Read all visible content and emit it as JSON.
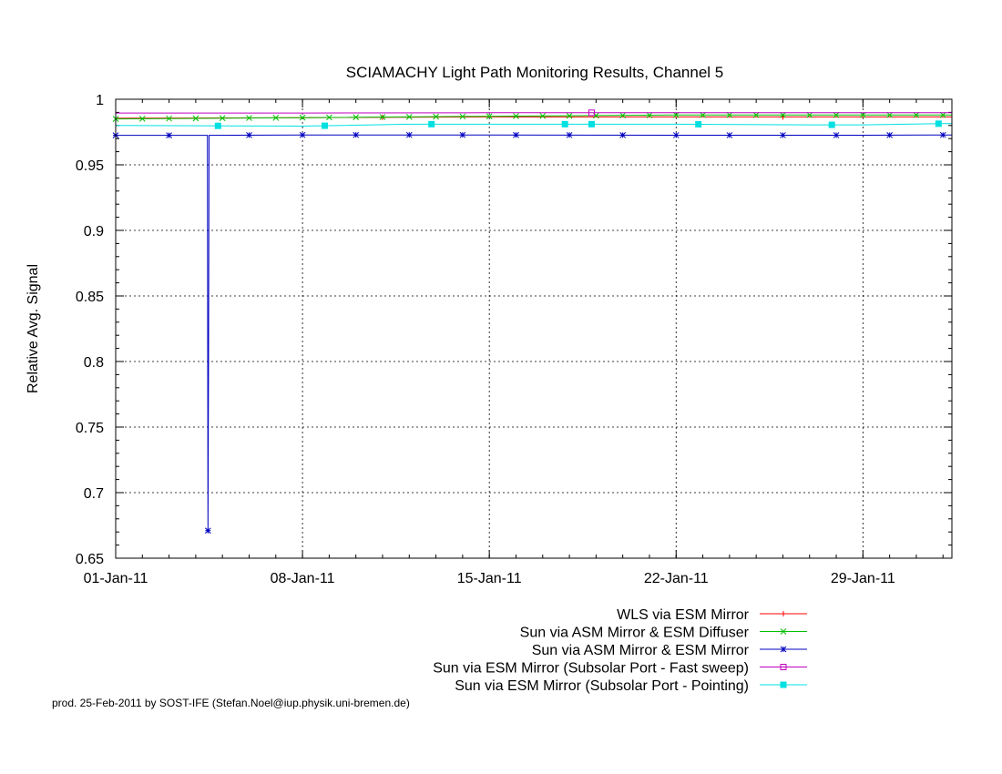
{
  "chart_data": {
    "type": "line",
    "title": "SCIAMACHY Light Path Monitoring Results, Channel 5",
    "xlabel": "",
    "ylabel": "Relative Avg. Signal",
    "xlim": [
      "2011-01-01",
      "2011-02-01T08:00"
    ],
    "ylim": [
      0.65,
      1.0
    ],
    "x_ticks": [
      "01-Jan-11",
      "08-Jan-11",
      "15-Jan-11",
      "22-Jan-11",
      "29-Jan-11"
    ],
    "x_tick_dates": [
      "2011-01-01",
      "2011-01-08",
      "2011-01-15",
      "2011-01-22",
      "2011-01-29"
    ],
    "y_ticks": [
      "0.65",
      "0.7",
      "0.75",
      "0.8",
      "0.85",
      "0.9",
      "0.95",
      "1"
    ],
    "y_tick_values": [
      0.65,
      0.7,
      0.75,
      0.8,
      0.85,
      0.9,
      0.95,
      1.0
    ],
    "grid": true,
    "legend_position": "bottom-right",
    "series": [
      {
        "name": "WLS via ESM Mirror",
        "color": "#ff0000",
        "marker": "plus",
        "points": [
          [
            "2011-01-01",
            0.9855
          ],
          [
            "2011-01-08",
            0.986
          ],
          [
            "2011-01-15",
            0.9865
          ],
          [
            "2011-01-22",
            0.9865
          ],
          [
            "2011-01-29",
            0.9865
          ],
          [
            "2011-02-01T08:00",
            0.9865
          ]
        ],
        "marker_dates": [
          "2011-01-11",
          "2011-01-26"
        ]
      },
      {
        "name": "Sun via ASM Mirror & ESM Diffuser",
        "color": "#00c000",
        "marker": "x",
        "points": [
          [
            "2011-01-01",
            0.985
          ],
          [
            "2011-01-08",
            0.986
          ],
          [
            "2011-01-15",
            0.987
          ],
          [
            "2011-01-22",
            0.988
          ],
          [
            "2011-01-29",
            0.988
          ],
          [
            "2011-02-01T08:00",
            0.988
          ]
        ],
        "marker_dates": [
          "2011-01-01",
          "2011-01-02",
          "2011-01-03",
          "2011-01-04",
          "2011-01-05",
          "2011-01-06",
          "2011-01-07",
          "2011-01-08",
          "2011-01-09",
          "2011-01-10",
          "2011-01-11",
          "2011-01-12",
          "2011-01-13",
          "2011-01-14",
          "2011-01-15",
          "2011-01-16",
          "2011-01-17",
          "2011-01-18",
          "2011-01-19",
          "2011-01-20",
          "2011-01-21",
          "2011-01-22",
          "2011-01-23",
          "2011-01-24",
          "2011-01-25",
          "2011-01-26",
          "2011-01-27",
          "2011-01-28",
          "2011-01-29",
          "2011-01-30",
          "2011-01-31",
          "2011-02-01"
        ]
      },
      {
        "name": "Sun via ASM Mirror & ESM Mirror",
        "color": "#0000c0",
        "marker": "star",
        "points": [
          [
            "2011-01-01",
            0.9725
          ],
          [
            "2011-01-04T10:00",
            0.9725
          ],
          [
            "2011-01-04T10:30",
            0.9725
          ],
          [
            "2011-01-04T11:00",
            0.671
          ],
          [
            "2011-01-04T11:30",
            0.79
          ],
          [
            "2011-01-04T12:00",
            0.9725
          ],
          [
            "2011-01-08",
            0.9728
          ],
          [
            "2011-01-15",
            0.9728
          ],
          [
            "2011-01-22",
            0.9726
          ],
          [
            "2011-01-29",
            0.9726
          ],
          [
            "2011-02-01T08:00",
            0.9728
          ]
        ],
        "marker_dates": [
          "2011-01-01",
          "2011-01-03",
          "2011-01-04T11:00",
          "2011-01-06",
          "2011-01-08",
          "2011-01-10",
          "2011-01-12",
          "2011-01-14",
          "2011-01-16",
          "2011-01-18",
          "2011-01-20",
          "2011-01-22",
          "2011-01-24",
          "2011-01-26",
          "2011-01-28",
          "2011-01-30",
          "2011-02-01"
        ]
      },
      {
        "name": "Sun via ESM Mirror (Subsolar Port - Fast sweep)",
        "color": "#c000c0",
        "marker": "square-open",
        "points": [
          [
            "2011-01-01",
            0.9895
          ],
          [
            "2011-01-08",
            0.9895
          ],
          [
            "2011-01-15",
            0.9897
          ],
          [
            "2011-01-22",
            0.9897
          ],
          [
            "2011-01-29",
            0.9897
          ],
          [
            "2011-02-01T08:00",
            0.9897
          ]
        ],
        "marker_dates": [
          "2011-01-18T20:00"
        ]
      },
      {
        "name": "Sun via ESM Mirror (Subsolar Port - Pointing)",
        "color": "#00e0e0",
        "marker": "square-filled",
        "points": [
          [
            "2011-01-01",
            0.98
          ],
          [
            "2011-01-08",
            0.9795
          ],
          [
            "2011-01-12",
            0.981
          ],
          [
            "2011-01-15",
            0.981
          ],
          [
            "2011-01-22",
            0.981
          ],
          [
            "2011-01-27",
            0.9805
          ],
          [
            "2011-01-29",
            0.9805
          ],
          [
            "2011-02-01T08:00",
            0.9815
          ]
        ],
        "marker_dates": [
          "2011-01-04T20:00",
          "2011-01-08T20:00",
          "2011-01-12T20:00",
          "2011-01-17T20:00",
          "2011-01-18T20:00",
          "2011-01-22T20:00",
          "2011-01-27T20:00",
          "2011-01-31T20:00"
        ]
      }
    ]
  },
  "footer": "prod. 25-Feb-2011 by SOST-IFE (Stefan.Noel@iup.physik.uni-bremen.de)"
}
